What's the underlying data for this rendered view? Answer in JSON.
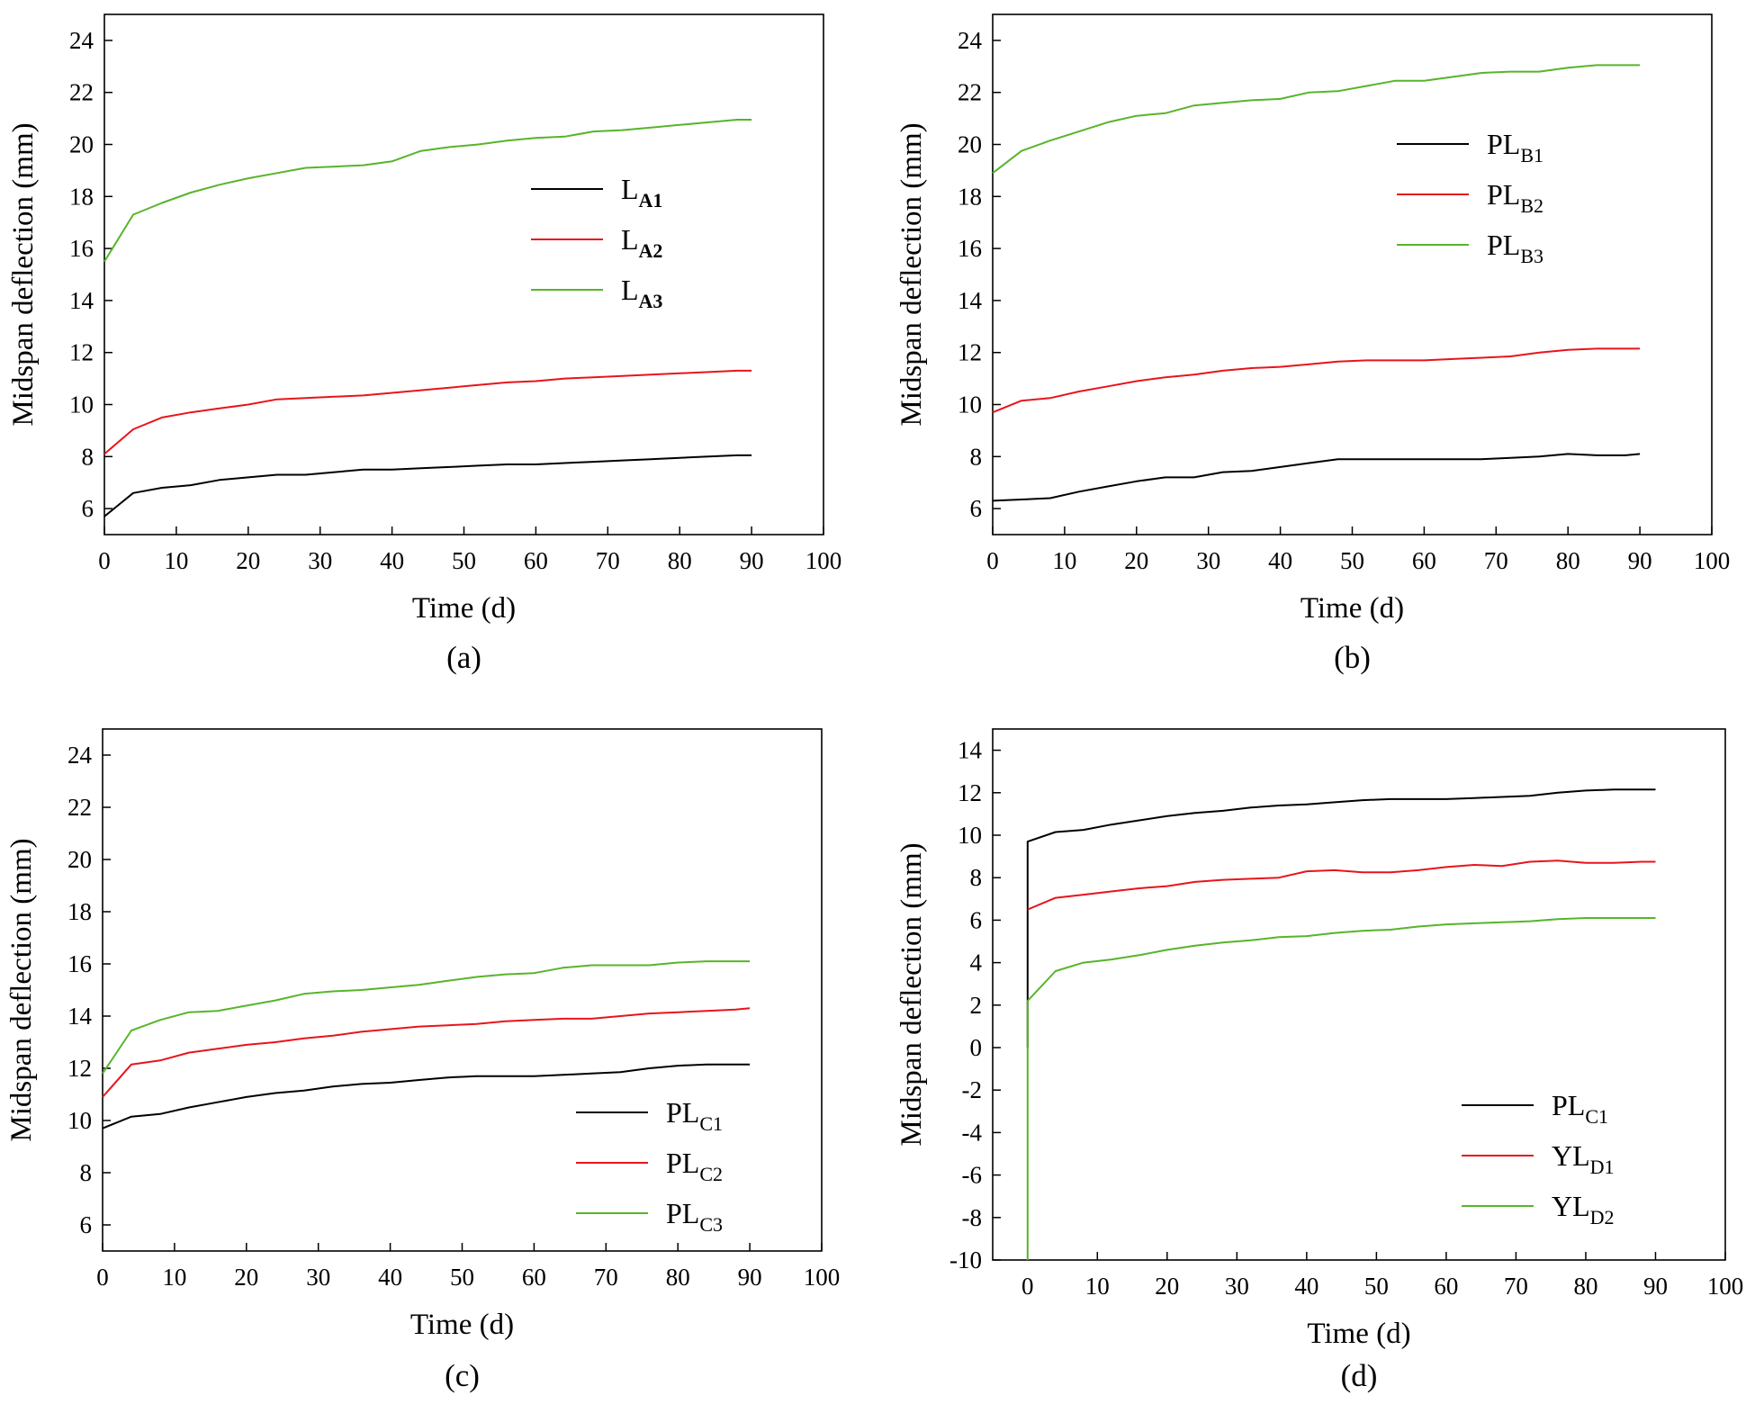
{
  "colors": {
    "black": "#000000",
    "red": "#e8141b",
    "green": "#58b42a"
  },
  "chart_data": [
    {
      "panel": "a",
      "caption": "(a)",
      "type": "line",
      "xlabel": "Time (d)",
      "ylabel": "Midspan deflection (mm)",
      "xlim": [
        0,
        100
      ],
      "ylim": [
        5,
        25
      ],
      "xticks": [
        0,
        10,
        20,
        30,
        40,
        50,
        60,
        70,
        80,
        90,
        100
      ],
      "yticks": [
        6,
        8,
        10,
        12,
        14,
        16,
        18,
        20,
        22,
        24
      ],
      "legend_position": "right-middle",
      "series": [
        {
          "name": "LA1",
          "label_main": "L",
          "label_sub": "A1",
          "sub_bold": true,
          "color": "black",
          "x": [
            0,
            4,
            8,
            12,
            16,
            20,
            24,
            28,
            32,
            36,
            40,
            44,
            48,
            52,
            56,
            60,
            64,
            68,
            72,
            76,
            80,
            84,
            88,
            90
          ],
          "y": [
            5.7,
            6.6,
            6.8,
            6.9,
            7.1,
            7.2,
            7.3,
            7.3,
            7.4,
            7.5,
            7.5,
            7.55,
            7.6,
            7.65,
            7.7,
            7.7,
            7.75,
            7.8,
            7.85,
            7.9,
            7.95,
            8.0,
            8.05,
            8.05
          ]
        },
        {
          "name": "LA2",
          "label_main": "L",
          "label_sub": "A2",
          "sub_bold": true,
          "color": "red",
          "x": [
            0,
            4,
            8,
            12,
            16,
            20,
            24,
            28,
            32,
            36,
            40,
            44,
            48,
            52,
            56,
            60,
            64,
            68,
            72,
            76,
            80,
            84,
            88,
            90
          ],
          "y": [
            8.1,
            9.05,
            9.5,
            9.7,
            9.85,
            10.0,
            10.2,
            10.25,
            10.3,
            10.35,
            10.45,
            10.55,
            10.65,
            10.75,
            10.85,
            10.9,
            11.0,
            11.05,
            11.1,
            11.15,
            11.2,
            11.25,
            11.3,
            11.3
          ]
        },
        {
          "name": "LA3",
          "label_main": "L",
          "label_sub": "A3",
          "sub_bold": true,
          "color": "green",
          "x": [
            0,
            4,
            8,
            12,
            16,
            20,
            24,
            28,
            32,
            36,
            40,
            44,
            48,
            52,
            56,
            60,
            64,
            68,
            72,
            76,
            80,
            84,
            88,
            90
          ],
          "y": [
            15.5,
            17.3,
            17.75,
            18.15,
            18.45,
            18.7,
            18.9,
            19.1,
            19.15,
            19.2,
            19.35,
            19.75,
            19.9,
            20.0,
            20.15,
            20.25,
            20.3,
            20.5,
            20.55,
            20.65,
            20.75,
            20.85,
            20.95,
            20.95
          ]
        }
      ]
    },
    {
      "panel": "b",
      "caption": "(b)",
      "type": "line",
      "xlabel": "Time (d)",
      "ylabel": "Midspan deflection (mm)",
      "xlim": [
        0,
        100
      ],
      "ylim": [
        5,
        25
      ],
      "xticks": [
        0,
        10,
        20,
        30,
        40,
        50,
        60,
        70,
        80,
        90,
        100
      ],
      "yticks": [
        6,
        8,
        10,
        12,
        14,
        16,
        18,
        20,
        22,
        24
      ],
      "legend_position": "top-right",
      "series": [
        {
          "name": "PLB1",
          "label_main": "PL",
          "label_sub": "B1",
          "sub_bold": false,
          "color": "black",
          "x": [
            0,
            4,
            8,
            12,
            16,
            20,
            24,
            28,
            32,
            36,
            40,
            44,
            48,
            52,
            56,
            60,
            64,
            68,
            72,
            76,
            80,
            84,
            88,
            90
          ],
          "y": [
            6.3,
            6.35,
            6.4,
            6.65,
            6.85,
            7.05,
            7.2,
            7.2,
            7.4,
            7.45,
            7.6,
            7.75,
            7.9,
            7.9,
            7.9,
            7.9,
            7.9,
            7.9,
            7.95,
            8.0,
            8.1,
            8.05,
            8.05,
            8.1
          ]
        },
        {
          "name": "PLB2",
          "label_main": "PL",
          "label_sub": "B2",
          "sub_bold": false,
          "color": "red",
          "x": [
            0,
            4,
            8,
            12,
            16,
            20,
            24,
            28,
            32,
            36,
            40,
            44,
            48,
            52,
            56,
            60,
            64,
            68,
            72,
            76,
            80,
            84,
            88,
            90
          ],
          "y": [
            9.7,
            10.15,
            10.25,
            10.5,
            10.7,
            10.9,
            11.05,
            11.15,
            11.3,
            11.4,
            11.45,
            11.55,
            11.65,
            11.7,
            11.7,
            11.7,
            11.75,
            11.8,
            11.85,
            12.0,
            12.1,
            12.15,
            12.15,
            12.15
          ]
        },
        {
          "name": "PLB3",
          "label_main": "PL",
          "label_sub": "B3",
          "sub_bold": false,
          "color": "green",
          "x": [
            0,
            4,
            8,
            12,
            16,
            20,
            24,
            28,
            32,
            36,
            40,
            44,
            48,
            52,
            56,
            60,
            64,
            68,
            72,
            76,
            80,
            84,
            88,
            90
          ],
          "y": [
            18.9,
            19.75,
            20.15,
            20.5,
            20.85,
            21.1,
            21.2,
            21.5,
            21.6,
            21.7,
            21.75,
            22.0,
            22.05,
            22.25,
            22.45,
            22.45,
            22.6,
            22.75,
            22.8,
            22.8,
            22.95,
            23.05,
            23.05,
            23.05
          ]
        }
      ]
    },
    {
      "panel": "c",
      "caption": "(c)",
      "type": "line",
      "xlabel": "Time (d)",
      "ylabel": "Midspan deflection (mm)",
      "xlim": [
        0,
        100
      ],
      "ylim": [
        5,
        25
      ],
      "xticks": [
        0,
        10,
        20,
        30,
        40,
        50,
        60,
        70,
        80,
        90,
        100
      ],
      "yticks": [
        6,
        8,
        10,
        12,
        14,
        16,
        18,
        20,
        22,
        24
      ],
      "legend_position": "bottom-right",
      "series": [
        {
          "name": "PLC1",
          "label_main": "PL",
          "label_sub": "C1",
          "sub_bold": false,
          "color": "black",
          "x": [
            0,
            4,
            8,
            12,
            16,
            20,
            24,
            28,
            32,
            36,
            40,
            44,
            48,
            52,
            56,
            60,
            64,
            68,
            72,
            76,
            80,
            84,
            88,
            90
          ],
          "y": [
            9.7,
            10.15,
            10.25,
            10.5,
            10.7,
            10.9,
            11.05,
            11.15,
            11.3,
            11.4,
            11.45,
            11.55,
            11.65,
            11.7,
            11.7,
            11.7,
            11.75,
            11.8,
            11.85,
            12.0,
            12.1,
            12.15,
            12.15,
            12.15
          ]
        },
        {
          "name": "PLC2",
          "label_main": "PL",
          "label_sub": "C2",
          "sub_bold": false,
          "color": "red",
          "x": [
            0,
            4,
            8,
            12,
            16,
            20,
            24,
            28,
            32,
            36,
            40,
            44,
            48,
            52,
            56,
            60,
            64,
            68,
            72,
            76,
            80,
            84,
            88,
            90
          ],
          "y": [
            10.9,
            12.15,
            12.3,
            12.6,
            12.75,
            12.9,
            13.0,
            13.15,
            13.25,
            13.4,
            13.5,
            13.6,
            13.65,
            13.7,
            13.8,
            13.85,
            13.9,
            13.9,
            14.0,
            14.1,
            14.15,
            14.2,
            14.25,
            14.3
          ]
        },
        {
          "name": "PLC3",
          "label_main": "PL",
          "label_sub": "C3",
          "sub_bold": false,
          "color": "green",
          "x": [
            0,
            4,
            8,
            12,
            16,
            20,
            24,
            28,
            32,
            36,
            40,
            44,
            48,
            52,
            56,
            60,
            64,
            68,
            72,
            76,
            80,
            84,
            88,
            90
          ],
          "y": [
            11.8,
            13.45,
            13.85,
            14.15,
            14.2,
            14.4,
            14.6,
            14.85,
            14.95,
            15.0,
            15.1,
            15.2,
            15.35,
            15.5,
            15.6,
            15.65,
            15.85,
            15.95,
            15.95,
            15.95,
            16.05,
            16.1,
            16.1,
            16.1
          ]
        }
      ]
    },
    {
      "panel": "d",
      "caption": "(d)",
      "type": "line",
      "xlabel": "Time (d)",
      "ylabel": "Midspan deflection (mm)",
      "xlim": [
        -5,
        100
      ],
      "ylim": [
        -10,
        15
      ],
      "xticks": [
        0,
        10,
        20,
        30,
        40,
        50,
        60,
        70,
        80,
        90,
        100
      ],
      "yticks": [
        -10,
        -8,
        -6,
        -4,
        -2,
        0,
        2,
        4,
        6,
        8,
        10,
        12,
        14
      ],
      "legend_position": "bottom-right",
      "series": [
        {
          "name": "PLC1",
          "label_main": "PL",
          "label_sub": "C1",
          "sub_bold": false,
          "color": "black",
          "x": [
            0,
            0,
            4,
            8,
            12,
            16,
            20,
            24,
            28,
            32,
            36,
            40,
            44,
            48,
            52,
            56,
            60,
            64,
            68,
            72,
            76,
            80,
            84,
            88,
            90
          ],
          "y": [
            0,
            9.7,
            10.15,
            10.25,
            10.5,
            10.7,
            10.9,
            11.05,
            11.15,
            11.3,
            11.4,
            11.45,
            11.55,
            11.65,
            11.7,
            11.7,
            11.7,
            11.75,
            11.8,
            11.85,
            12.0,
            12.1,
            12.15,
            12.15,
            12.15
          ]
        },
        {
          "name": "YLD1",
          "label_main": "YL",
          "label_sub": "D1",
          "sub_bold": false,
          "color": "red",
          "x": [
            0,
            4,
            8,
            12,
            16,
            20,
            24,
            28,
            32,
            36,
            40,
            44,
            48,
            52,
            56,
            60,
            64,
            68,
            72,
            76,
            80,
            84,
            88,
            90
          ],
          "y": [
            6.5,
            7.05,
            7.2,
            7.35,
            7.5,
            7.6,
            7.8,
            7.9,
            7.95,
            8.0,
            8.3,
            8.35,
            8.25,
            8.25,
            8.35,
            8.5,
            8.6,
            8.55,
            8.75,
            8.8,
            8.7,
            8.7,
            8.75,
            8.75
          ]
        },
        {
          "name": "YLD2",
          "label_main": "YL",
          "label_sub": "D2",
          "sub_bold": false,
          "color": "green",
          "x": [
            0,
            0,
            4,
            8,
            12,
            16,
            20,
            24,
            28,
            32,
            36,
            40,
            44,
            48,
            52,
            56,
            60,
            64,
            68,
            72,
            76,
            80,
            84,
            88,
            90
          ],
          "y": [
            -10,
            2.2,
            3.6,
            4.0,
            4.15,
            4.35,
            4.6,
            4.8,
            4.95,
            5.05,
            5.2,
            5.25,
            5.4,
            5.5,
            5.55,
            5.7,
            5.8,
            5.85,
            5.9,
            5.95,
            6.05,
            6.1,
            6.1,
            6.1,
            6.1
          ]
        }
      ]
    }
  ]
}
